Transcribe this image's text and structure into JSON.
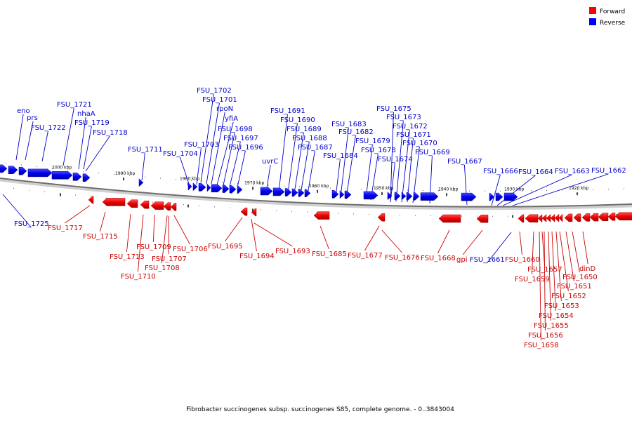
{
  "legend": {
    "forward": {
      "label": "Forward",
      "color": "#ff0000"
    },
    "reverse": {
      "label": "Reverse",
      "color": "#0000ff"
    }
  },
  "caption": "Fibrobacter succinogenes subsp. succinogenes S85, complete genome. - 0..3843004",
  "scale_ticks": [
    "2000 kbp",
    "1990 kbp",
    "1980 kbp",
    "1970 kbp",
    "1960 kbp",
    "1950 kbp",
    "1940 kbp",
    "1930 kbp",
    "1920 kbp"
  ],
  "genes": [
    {
      "name": "eno",
      "strand": "reverse"
    },
    {
      "name": "prs",
      "strand": "reverse"
    },
    {
      "name": "FSU_1722",
      "strand": "reverse"
    },
    {
      "name": "FSU_1721",
      "strand": "reverse"
    },
    {
      "name": "nhaA",
      "strand": "reverse"
    },
    {
      "name": "FSU_1719",
      "strand": "reverse"
    },
    {
      "name": "FSU_1718",
      "strand": "reverse"
    },
    {
      "name": "FSU_1711",
      "strand": "reverse"
    },
    {
      "name": "FSU_1704",
      "strand": "reverse"
    },
    {
      "name": "FSU_1703",
      "strand": "reverse"
    },
    {
      "name": "FSU_1702",
      "strand": "reverse"
    },
    {
      "name": "FSU_1701",
      "strand": "reverse"
    },
    {
      "name": "rpoN",
      "strand": "reverse"
    },
    {
      "name": "yfiA",
      "strand": "reverse"
    },
    {
      "name": "FSU_1698",
      "strand": "reverse"
    },
    {
      "name": "FSU_1697",
      "strand": "reverse"
    },
    {
      "name": "FSU_1696",
      "strand": "reverse"
    },
    {
      "name": "uvrC",
      "strand": "reverse"
    },
    {
      "name": "FSU_1691",
      "strand": "reverse"
    },
    {
      "name": "FSU_1690",
      "strand": "reverse"
    },
    {
      "name": "FSU_1689",
      "strand": "reverse"
    },
    {
      "name": "FSU_1688",
      "strand": "reverse"
    },
    {
      "name": "FSU_1687",
      "strand": "reverse"
    },
    {
      "name": "FSU_1684",
      "strand": "reverse"
    },
    {
      "name": "FSU_1683",
      "strand": "reverse"
    },
    {
      "name": "FSU_1682",
      "strand": "reverse"
    },
    {
      "name": "FSU_1679",
      "strand": "reverse"
    },
    {
      "name": "FSU_1678",
      "strand": "reverse"
    },
    {
      "name": "FSU_1675",
      "strand": "reverse"
    },
    {
      "name": "FSU_1674",
      "strand": "reverse"
    },
    {
      "name": "FSU_1673",
      "strand": "reverse"
    },
    {
      "name": "FSU_1672",
      "strand": "reverse"
    },
    {
      "name": "FSU_1671",
      "strand": "reverse"
    },
    {
      "name": "FSU_1670",
      "strand": "reverse"
    },
    {
      "name": "FSU_1669",
      "strand": "reverse"
    },
    {
      "name": "FSU_1667",
      "strand": "reverse"
    },
    {
      "name": "FSU_1666",
      "strand": "reverse"
    },
    {
      "name": "FSU_1664",
      "strand": "reverse"
    },
    {
      "name": "FSU_1663",
      "strand": "reverse"
    },
    {
      "name": "FSU_1662",
      "strand": "reverse"
    },
    {
      "name": "FSU_1725",
      "strand": "reverse"
    },
    {
      "name": "FSU_1661",
      "strand": "reverse"
    },
    {
      "name": "FSU_1717",
      "strand": "forward"
    },
    {
      "name": "FSU_1715",
      "strand": "forward"
    },
    {
      "name": "FSU_1713",
      "strand": "forward"
    },
    {
      "name": "FSU_1710",
      "strand": "forward"
    },
    {
      "name": "FSU_1709",
      "strand": "forward"
    },
    {
      "name": "FSU_1708",
      "strand": "forward"
    },
    {
      "name": "FSU_1707",
      "strand": "forward"
    },
    {
      "name": "FSU_1706",
      "strand": "forward"
    },
    {
      "name": "FSU_1695",
      "strand": "forward"
    },
    {
      "name": "FSU_1694",
      "strand": "forward"
    },
    {
      "name": "FSU_1693",
      "strand": "forward"
    },
    {
      "name": "FSU_1685",
      "strand": "forward"
    },
    {
      "name": "FSU_1677",
      "strand": "forward"
    },
    {
      "name": "FSU_1676",
      "strand": "forward"
    },
    {
      "name": "FSU_1668",
      "strand": "forward"
    },
    {
      "name": "gpi",
      "strand": "forward"
    },
    {
      "name": "FSU_1660",
      "strand": "forward"
    },
    {
      "name": "FSU_1659",
      "strand": "forward"
    },
    {
      "name": "FSU_1658",
      "strand": "forward"
    },
    {
      "name": "FSU_1657",
      "strand": "forward"
    },
    {
      "name": "FSU_1656",
      "strand": "forward"
    },
    {
      "name": "FSU_1655",
      "strand": "forward"
    },
    {
      "name": "FSU_1654",
      "strand": "forward"
    },
    {
      "name": "FSU_1653",
      "strand": "forward"
    },
    {
      "name": "FSU_1652",
      "strand": "forward"
    },
    {
      "name": "FSU_1651",
      "strand": "forward"
    },
    {
      "name": "FSU_1650",
      "strand": "forward"
    },
    {
      "name": "dinD",
      "strand": "forward"
    }
  ]
}
